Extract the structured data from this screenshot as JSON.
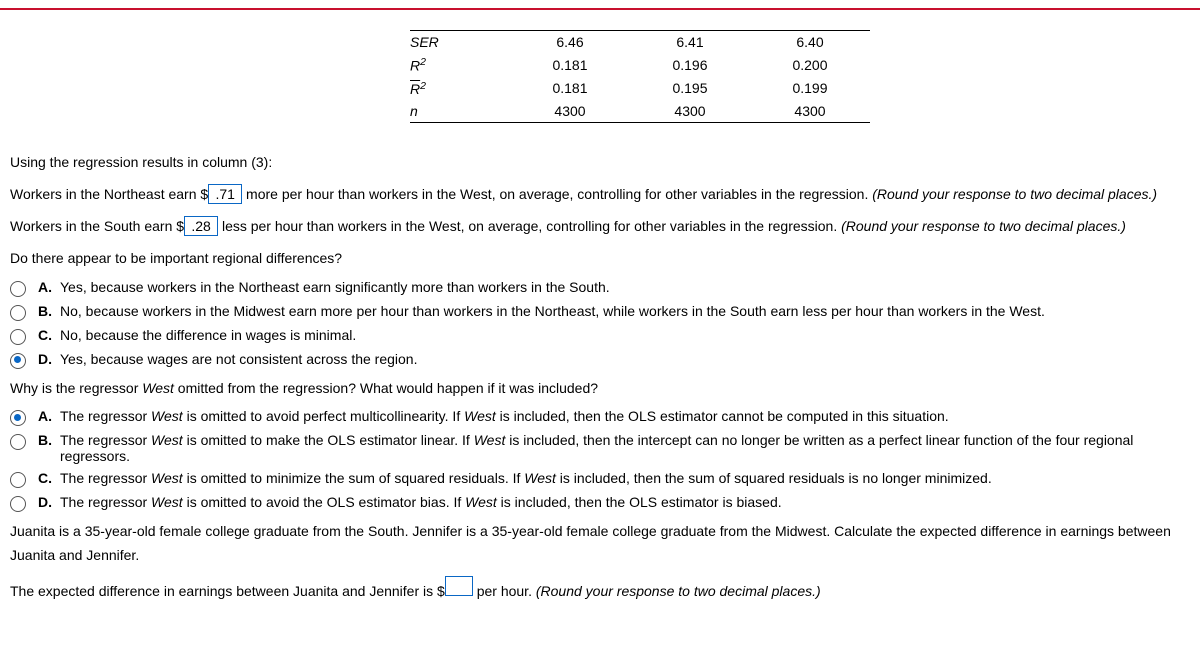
{
  "table": {
    "rows": [
      {
        "label": "SER",
        "c1": "6.46",
        "c2": "6.41",
        "c3": "6.40"
      },
      {
        "label": "R²",
        "c1": "0.181",
        "c2": "0.196",
        "c3": "0.200"
      },
      {
        "label": "R̄²",
        "c1": "0.181",
        "c2": "0.195",
        "c3": "0.199"
      },
      {
        "label": "n",
        "c1": "4300",
        "c2": "4300",
        "c3": "4300"
      }
    ]
  },
  "heading_a": "Using the regression results in column (3):",
  "line_ne": {
    "pre": "Workers in the Northeast earn $",
    "val": ".71",
    "mid": " more per hour than workers in the West, on average, controlling for other variables in the regression. ",
    "round": "(Round your response to two decimal places.)"
  },
  "line_s": {
    "pre": "Workers in the South earn $",
    "val": ".28",
    "mid": " less per hour than workers in the West, on average, controlling for other variables in the regression. ",
    "round": "(Round your response to two decimal places.)"
  },
  "q_regional": "Do there appear to be important regional differences?",
  "opts1": {
    "a": "Yes, because workers in the Northeast earn significantly more than workers in the South.",
    "b": "No, because workers in the Midwest earn more per hour than workers in the Northeast, while workers in the South earn less per hour than workers in the West.",
    "c": "No, because the difference in wages is minimal.",
    "d": "Yes, because wages are not consistent across the region.",
    "selected": "d"
  },
  "q_west_a": "Why is the regressor ",
  "q_west_b": " omitted from the regression? What would happen if it was included?",
  "west": "West",
  "opts2": {
    "a1": "The regressor ",
    "a2": " is omitted to avoid perfect multicollinearity. If ",
    "a3": " is included, then the OLS estimator cannot be computed in this situation.",
    "b1": "The regressor ",
    "b2": " is omitted to make the OLS estimator linear. If ",
    "b3": " is included, then the intercept can no longer be written as a perfect linear function of the four regional regressors.",
    "c1": "The regressor ",
    "c2": " is omitted to minimize the sum of squared residuals. If ",
    "c3": " is included, then the sum of squared residuals is no longer minimized.",
    "d1": "The regressor ",
    "d2": " is omitted to avoid the OLS estimator bias. If ",
    "d3": " is included, then the OLS estimator is biased.",
    "selected": "a"
  },
  "juanita": "Juanita is a 35-year-old female college graduate from the South. Jennifer is a 35-year-old female college graduate from the Midwest. Calculate the expected difference in earnings between Juanita and Jennifer.",
  "diff_line": {
    "pre": "The expected difference in earnings between Juanita and Jennifer is $",
    "post": " per hour. ",
    "round": "(Round your response to two decimal places.)"
  },
  "letters": {
    "a": "A.",
    "b": "B.",
    "c": "C.",
    "d": "D."
  }
}
